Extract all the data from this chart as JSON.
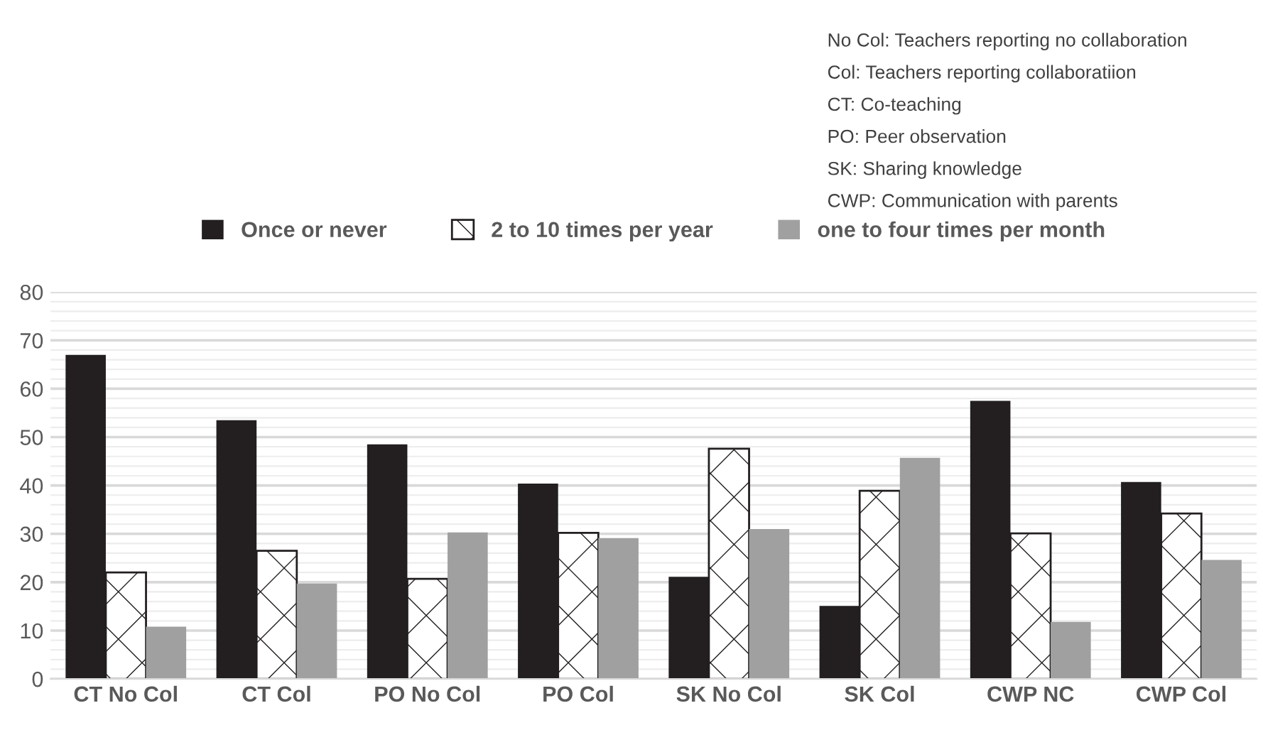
{
  "chart_data": {
    "type": "bar",
    "categories": [
      "CT No Col",
      "CT Col",
      "PO No Col",
      "PO Col",
      "SK No Col",
      "SK Col",
      "CWP NC",
      "CWP Col"
    ],
    "series": [
      {
        "name": "Once or never",
        "color": "#231f20",
        "values": [
          67,
          53.5,
          48.5,
          40.4,
          21.1,
          15.1,
          57.5,
          40.7
        ]
      },
      {
        "name": "2 to 10 times per year",
        "color": "#231f20",
        "values": [
          22,
          26.5,
          20.7,
          30.2,
          47.6,
          38.9,
          30.1,
          34.2
        ]
      },
      {
        "name": "one to four times per month",
        "color": "#a0a0a0",
        "values": [
          10.8,
          19.7,
          30.3,
          29.1,
          31,
          45.7,
          11.8,
          24.6
        ]
      }
    ],
    "ylim": [
      0,
      80
    ],
    "yticks": [
      0,
      10,
      20,
      30,
      40,
      50,
      60,
      70,
      80
    ],
    "grid": "y",
    "legend": "top",
    "annotations": [
      "No Col: Teachers reporting no collaboration",
      "Col: Teachers reporting collaboratiion",
      "CT: Co-teaching",
      "PO: Peer observation",
      "SK: Sharing knowledge",
      "CWP: Communication with parents"
    ]
  }
}
